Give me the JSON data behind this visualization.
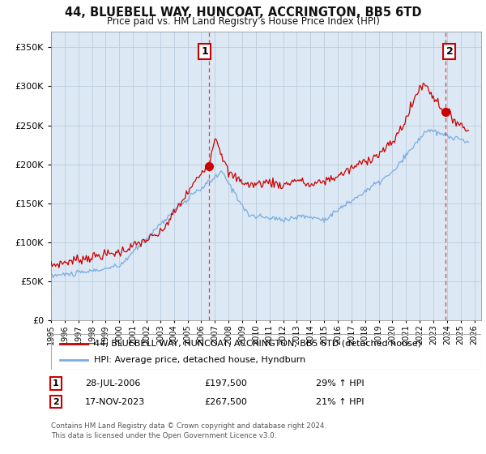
{
  "title": "44, BLUEBELL WAY, HUNCOAT, ACCRINGTON, BB5 6TD",
  "subtitle": "Price paid vs. HM Land Registry's House Price Index (HPI)",
  "legend_line1": "44, BLUEBELL WAY, HUNCOAT, ACCRINGTON, BB5 6TD (detached house)",
  "legend_line2": "HPI: Average price, detached house, Hyndburn",
  "annotation1_date": "28-JUL-2006",
  "annotation1_price": "£197,500",
  "annotation1_hpi": "29% ↑ HPI",
  "annotation1_year": 2006.57,
  "annotation1_value": 197500,
  "annotation2_date": "17-NOV-2023",
  "annotation2_price": "£267,500",
  "annotation2_hpi": "21% ↑ HPI",
  "annotation2_year": 2023.88,
  "annotation2_value": 267500,
  "footer1": "Contains HM Land Registry data © Crown copyright and database right 2024.",
  "footer2": "This data is licensed under the Open Government Licence v3.0.",
  "red_color": "#cc0000",
  "blue_color": "#7aace0",
  "plot_bg_color": "#dce9f5",
  "ylim_min": 0,
  "ylim_max": 370000,
  "xlim_min": 1995.0,
  "xlim_max": 2026.5,
  "background_color": "#ffffff",
  "grid_color": "#bbccdd"
}
